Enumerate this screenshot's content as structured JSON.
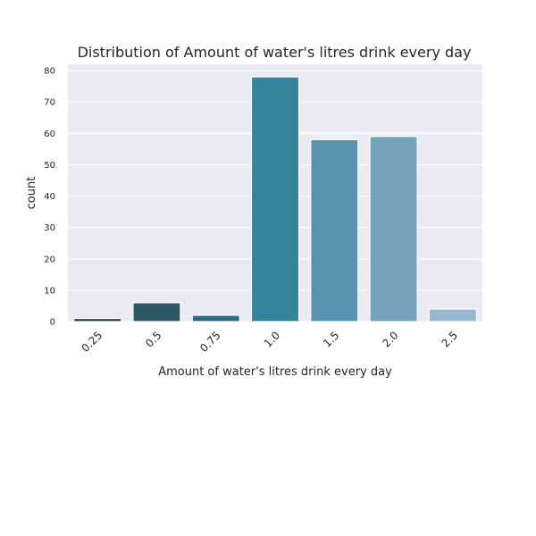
{
  "chart_data": {
    "type": "bar",
    "title": "Distribution of Amount of water's litres drink every day",
    "xlabel": "Amount of water's litres drink every day",
    "ylabel": "count",
    "categories": [
      "0.25",
      "0.5",
      "0.75",
      "1.0",
      "1.5",
      "2.0",
      "2.5"
    ],
    "values": [
      1,
      6,
      2,
      78,
      58,
      59,
      4
    ],
    "colors": [
      "#2d4a53",
      "#2f5867",
      "#2e6a80",
      "#34849e",
      "#5693ae",
      "#74a4bd",
      "#98b6cd"
    ],
    "ylim": [
      0,
      82
    ],
    "yticks": [
      0,
      10,
      20,
      30,
      40,
      50,
      60,
      70,
      80
    ],
    "grid": true,
    "legend": "none"
  }
}
